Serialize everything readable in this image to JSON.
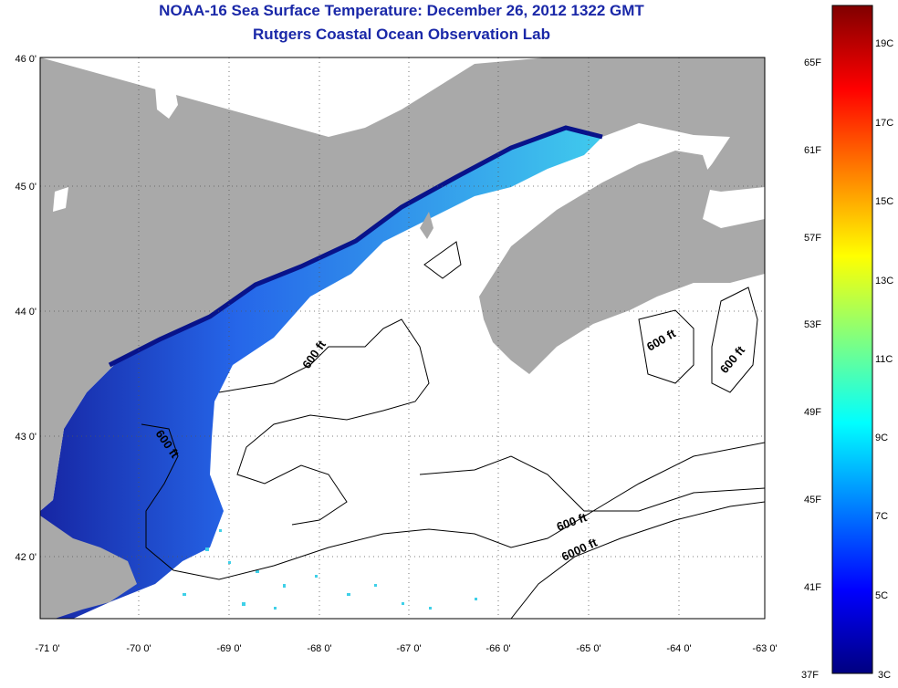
{
  "header": {
    "title": "NOAA-16 Sea Surface Temperature:  December 26, 2012 1322 GMT",
    "subtitle": "Rutgers Coastal Ocean Observation Lab"
  },
  "map": {
    "lat_labels": [
      "46 0'",
      "45 0'",
      "44 0'",
      "43 0'",
      "42 0'"
    ],
    "lon_labels": [
      "-71 0'",
      "-70 0'",
      "-69 0'",
      "-68 0'",
      "-67 0'",
      "-66 0'",
      "-65 0'",
      "-64 0'",
      "-63 0'"
    ],
    "contour_labels": [
      "600 ft",
      "600 ft",
      "600 ft",
      "600 ft",
      "600 ft",
      "6000 ft"
    ],
    "colors": {
      "land": "#a9a9a9",
      "no_data": "#ffffff",
      "contour": "#000000"
    }
  },
  "colorbar": {
    "fahrenheit_labels": [
      "65F",
      "61F",
      "57F",
      "53F",
      "49F",
      "45F",
      "41F",
      "37F"
    ],
    "celsius_labels": [
      "19C",
      "17C",
      "15C",
      "13C",
      "11C",
      "9C",
      "7C",
      "5C",
      "3C"
    ],
    "gradient": [
      "#000080",
      "#0000ff",
      "#0080ff",
      "#00ffff",
      "#80ff80",
      "#ffff00",
      "#ff8000",
      "#ff0000",
      "#800000"
    ]
  }
}
